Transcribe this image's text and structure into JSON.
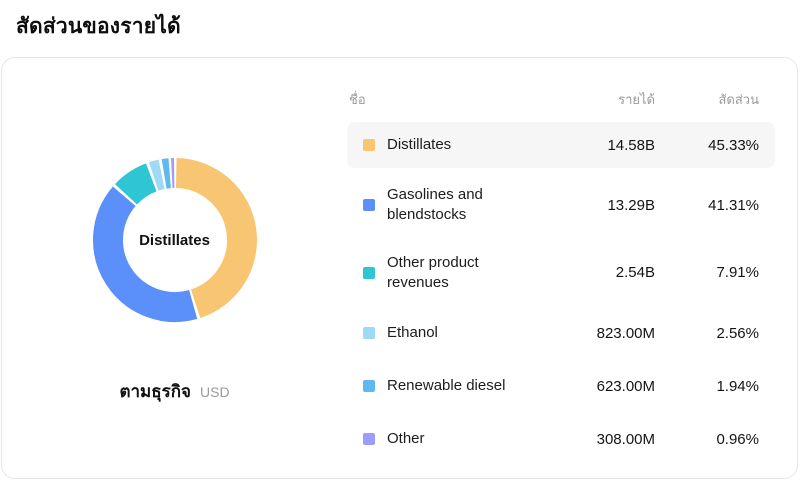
{
  "page_title": "สัดส่วนของรายได้",
  "chart_data": {
    "type": "pie",
    "title": "สัดส่วนของรายได้",
    "center_label": "Distillates",
    "footer_label": "ตามธุรกิจ",
    "footer_unit": "USD",
    "legend_position": "right-table",
    "columns": {
      "name": "ชื่อ",
      "revenue": "รายได้",
      "share": "สัดส่วน"
    },
    "donut": {
      "inner_radius_pct": 62,
      "start_angle_deg": -90,
      "direction": "clockwise"
    },
    "segments": [
      {
        "name": "Distillates",
        "revenue": "14.58B",
        "share": "45.33%",
        "value": 45.33,
        "color": "#f8c572",
        "highlighted": true
      },
      {
        "name": "Gasolines and blendstocks",
        "revenue": "13.29B",
        "share": "41.31%",
        "value": 41.31,
        "color": "#5b8ff9",
        "highlighted": false
      },
      {
        "name": "Other product revenues",
        "revenue": "2.54B",
        "share": "7.91%",
        "value": 7.91,
        "color": "#2fc6d4",
        "highlighted": false
      },
      {
        "name": "Ethanol",
        "revenue": "823.00M",
        "share": "2.56%",
        "value": 2.56,
        "color": "#9fd9f8",
        "highlighted": false
      },
      {
        "name": "Renewable diesel",
        "revenue": "623.00M",
        "share": "1.94%",
        "value": 1.94,
        "color": "#5fb8f0",
        "highlighted": false
      },
      {
        "name": "Other",
        "revenue": "308.00M",
        "share": "0.96%",
        "value": 0.96,
        "color": "#9c9df8",
        "highlighted": false
      }
    ]
  }
}
